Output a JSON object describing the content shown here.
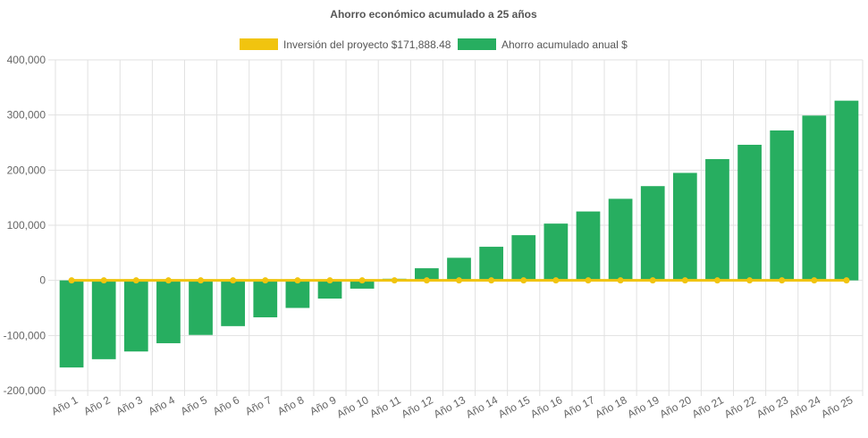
{
  "chart_data": {
    "type": "bar",
    "title": "Ahorro económico acumulado a 25 años",
    "categories": [
      "Año 1",
      "Año 2",
      "Año 3",
      "Año 4",
      "Año 5",
      "Año 6",
      "Año 7",
      "Año 8",
      "Año 9",
      "Año 10",
      "Año 11",
      "Año 12",
      "Año 13",
      "Año 14",
      "Año 15",
      "Año 16",
      "Año 17",
      "Año 18",
      "Año 19",
      "Año 20",
      "Año 21",
      "Año 22",
      "Año 23",
      "Año 24",
      "Año 25"
    ],
    "series": [
      {
        "name": "Inversión del proyecto $171,888.48",
        "type": "line",
        "color": "#f1c40f",
        "values": [
          0,
          0,
          0,
          0,
          0,
          0,
          0,
          0,
          0,
          0,
          0,
          0,
          0,
          0,
          0,
          0,
          0,
          0,
          0,
          0,
          0,
          0,
          0,
          0,
          0
        ]
      },
      {
        "name": "Ahorro acumulado anual $",
        "type": "bar",
        "color": "#27ae60",
        "values": [
          -158000,
          -143000,
          -129000,
          -114000,
          -99000,
          -83000,
          -67000,
          -50000,
          -33000,
          -15000,
          3000,
          22000,
          41000,
          61000,
          82000,
          103000,
          125000,
          148000,
          171000,
          195000,
          220000,
          246000,
          272000,
          299000,
          326000
        ]
      }
    ],
    "ylim": [
      -200000,
      400000
    ],
    "yticks": [
      "400,000",
      "300,000",
      "200,000",
      "100,000",
      "0",
      "-100,000",
      "-200,000"
    ],
    "grid": true,
    "legend": "top-center"
  }
}
